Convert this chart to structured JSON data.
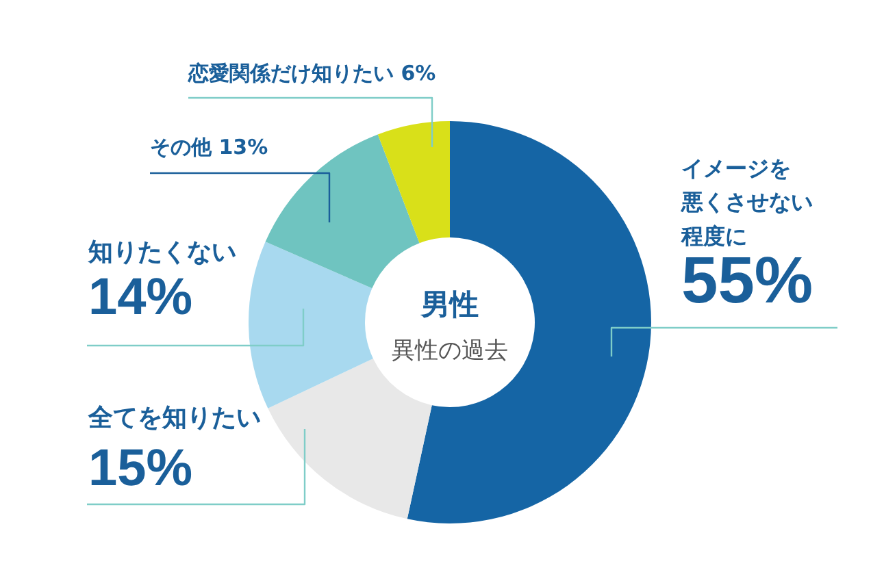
{
  "chart_data": {
    "type": "donut",
    "title": "男性",
    "subtitle": "異性の過去",
    "categories": [
      "イメージを悪くさせない程度に",
      "全てを知りたい",
      "知りたくない",
      "その他",
      "恋愛関係だけ知りたい"
    ],
    "values": [
      55,
      15,
      14,
      13,
      6
    ],
    "colors": [
      "#1565a5",
      "#e8e8e8",
      "#a8d9ef",
      "#6fc4c0",
      "#d9e019"
    ],
    "value_labels": [
      "55%",
      "15%",
      "14%",
      "13%",
      "6%"
    ]
  }
}
